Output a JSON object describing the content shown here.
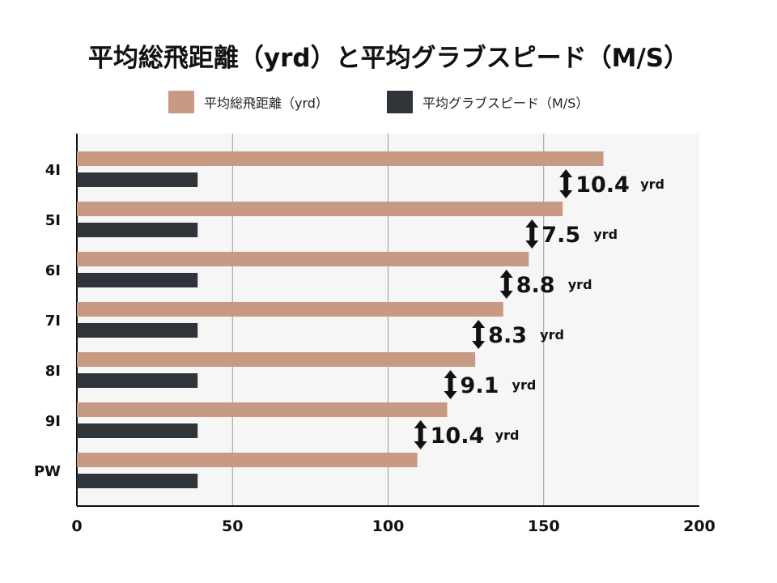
{
  "chart_data": {
    "type": "bar",
    "title": "平均総飛距離（yrd）と平均グラブスピード（M/S）",
    "categories": [
      "4I",
      "5I",
      "6I",
      "7I",
      "8I",
      "9I",
      "PW"
    ],
    "series": [
      {
        "name": "平均総飛距離（yrd）",
        "color": "#c89a84",
        "values": [
          169.2,
          156.1,
          145.2,
          137.0,
          128.0,
          119.0,
          109.4
        ]
      },
      {
        "name": "平均グラブスピード（M/S）",
        "color": "#2e3439",
        "values": [
          38.8,
          38.8,
          38.8,
          38.8,
          38.8,
          38.8,
          38.8
        ]
      }
    ],
    "annotations": [
      {
        "value": "10.4",
        "unit": "yrd"
      },
      {
        "value": "7.5",
        "unit": "yrd"
      },
      {
        "value": "8.8",
        "unit": "yrd"
      },
      {
        "value": "8.3",
        "unit": "yrd"
      },
      {
        "value": "9.1",
        "unit": "yrd"
      },
      {
        "value": "10.4",
        "unit": "yrd"
      }
    ],
    "xlim": [
      0,
      200
    ],
    "xticks": [
      "0",
      "50",
      "100",
      "150",
      "200"
    ],
    "grid": true,
    "legend": "top"
  }
}
